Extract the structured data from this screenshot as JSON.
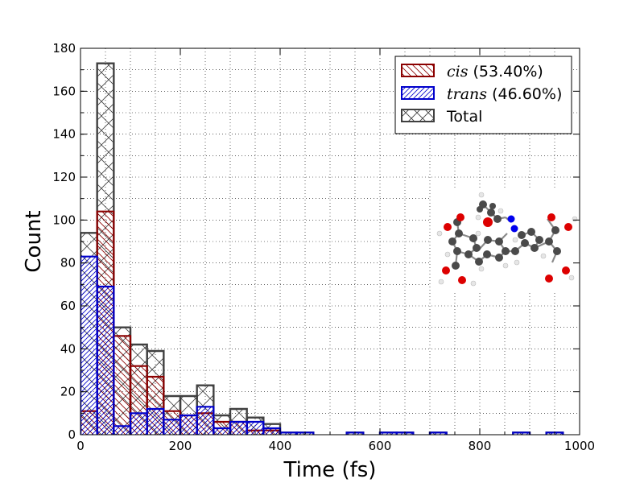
{
  "chart_data": {
    "type": "bar",
    "title": "",
    "xlabel": "Time (fs)",
    "ylabel": "Count",
    "xlim": [
      0,
      1000
    ],
    "ylim": [
      0,
      180
    ],
    "xticks": [
      "0",
      "200",
      "400",
      "600",
      "800",
      "1000"
    ],
    "yticks": [
      "0",
      "20",
      "40",
      "60",
      "80",
      "100",
      "120",
      "140",
      "160",
      "180"
    ],
    "bin_width": 33.33,
    "bin_starts": [
      0,
      33.33,
      66.67,
      100,
      133.33,
      166.67,
      200,
      233.33,
      266.67,
      300,
      333.33,
      366.67,
      400,
      433.33,
      466.67,
      500,
      533.33,
      566.67,
      600,
      633.33,
      666.67,
      700,
      733.33,
      766.67,
      800,
      833.33,
      866.67,
      900,
      933.33,
      966.67
    ],
    "grid": true,
    "legend_position": "top-right",
    "series": [
      {
        "name_italic": "cis",
        "name_suffix": " (53.40%)",
        "color": "#8b0000",
        "values": [
          11,
          104,
          46,
          32,
          27,
          11,
          9,
          10,
          6,
          6,
          2,
          2,
          0,
          0,
          0,
          0,
          0,
          0,
          0,
          0,
          0,
          0,
          0,
          0,
          0,
          0,
          0,
          0,
          0,
          0
        ]
      },
      {
        "name_italic": "trans",
        "name_suffix": " (46.60%)",
        "color": "#0000cc",
        "values": [
          83,
          69,
          4,
          10,
          12,
          7,
          9,
          13,
          3,
          6,
          6,
          3,
          1,
          1,
          0,
          0,
          1,
          0,
          1,
          1,
          0,
          1,
          0,
          0,
          0,
          0,
          1,
          0,
          1,
          0
        ]
      },
      {
        "name": "Total",
        "color": "#404040",
        "values": [
          94,
          173,
          50,
          42,
          39,
          18,
          18,
          23,
          9,
          12,
          8,
          5,
          1,
          1,
          0,
          0,
          1,
          0,
          1,
          1,
          0,
          1,
          0,
          0,
          0,
          0,
          1,
          0,
          1,
          0
        ]
      }
    ]
  }
}
